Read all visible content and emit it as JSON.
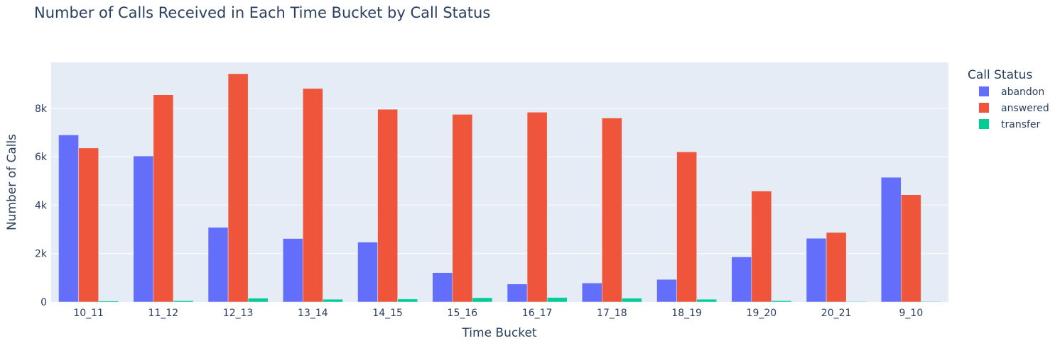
{
  "chart_data": {
    "type": "bar",
    "title": "Number of Calls Received in Each Time Bucket by Call Status",
    "xlabel": "Time Bucket",
    "ylabel": "Number of Calls",
    "ylim": [
      0,
      9900
    ],
    "yticks": [
      0,
      2000,
      4000,
      6000,
      8000
    ],
    "ytick_labels": [
      "0",
      "2k",
      "4k",
      "6k",
      "8k"
    ],
    "grid": true,
    "legend_title": "Call Status",
    "legend_position": "top-right",
    "categories": [
      "10_11",
      "11_12",
      "12_13",
      "13_14",
      "14_15",
      "15_16",
      "16_17",
      "17_18",
      "18_19",
      "19_20",
      "20_21",
      "9_10"
    ],
    "series": [
      {
        "name": "abandon",
        "color": "#636efa",
        "values": [
          6900,
          6030,
          3080,
          2620,
          2470,
          1210,
          740,
          780,
          930,
          1860,
          2630,
          5150
        ]
      },
      {
        "name": "answered",
        "color": "#ef553b",
        "values": [
          6360,
          8560,
          9430,
          8820,
          7960,
          7750,
          7840,
          7600,
          6200,
          4580,
          2870,
          4430
        ]
      },
      {
        "name": "transfer",
        "color": "#00cc96",
        "values": [
          40,
          50,
          150,
          110,
          120,
          170,
          180,
          150,
          110,
          50,
          20,
          20
        ]
      }
    ]
  }
}
